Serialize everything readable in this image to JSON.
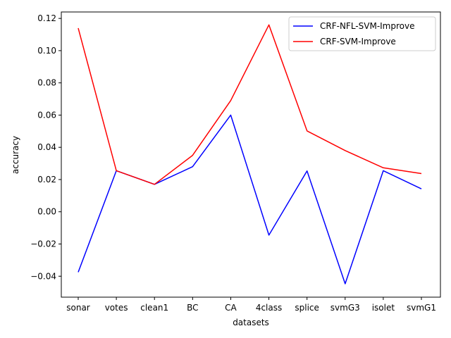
{
  "chart_data": {
    "type": "line",
    "title": "",
    "xlabel": "datasets",
    "ylabel": "accuracy",
    "categories": [
      "sonar",
      "votes",
      "clean1",
      "BC",
      "CA",
      "4class",
      "splice",
      "svmG3",
      "isolet",
      "svmG1"
    ],
    "ylim": [
      -0.053,
      0.124
    ],
    "yticks": [
      -0.04,
      -0.02,
      0.0,
      0.02,
      0.04,
      0.06,
      0.08,
      0.1,
      0.12
    ],
    "ytick_labels": [
      "−0.04",
      "−0.02",
      "0.00",
      "0.02",
      "0.04",
      "0.06",
      "0.08",
      "0.10",
      "0.12"
    ],
    "grid": false,
    "legend_position": "top-right",
    "series": [
      {
        "name": "CRF-NFL-SVM-Improve",
        "color": "#0000ff",
        "values": [
          -0.0375,
          0.0255,
          0.017,
          0.028,
          0.06,
          -0.0145,
          0.0253,
          -0.0447,
          0.0255,
          0.0142
        ]
      },
      {
        "name": "CRF-SVM-Improve",
        "color": "#ff0000",
        "values": [
          0.114,
          0.0255,
          0.017,
          0.035,
          0.069,
          0.116,
          0.0502,
          0.038,
          0.0273,
          0.0237
        ]
      }
    ]
  }
}
